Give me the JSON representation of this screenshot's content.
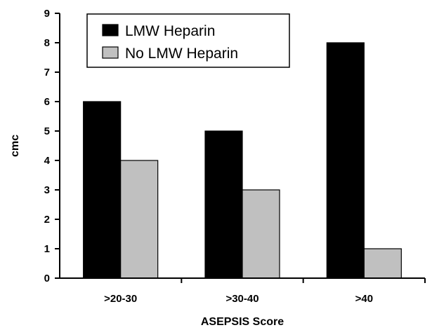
{
  "chart_data": {
    "type": "bar",
    "categories": [
      ">20-30",
      ">30-40",
      ">40"
    ],
    "series": [
      {
        "name": "LMW Heparin",
        "values": [
          6,
          5,
          8
        ],
        "color": "#000000"
      },
      {
        "name": "No LMW Heparin",
        "values": [
          4,
          3,
          1
        ],
        "color": "#c0c0c0"
      }
    ],
    "xlabel": "ASEPSIS Score",
    "ylabel": "cmc",
    "ylim": [
      0,
      9
    ],
    "yticks": [
      "0",
      "1",
      "2",
      "3",
      "4",
      "5",
      "6",
      "7",
      "8",
      "9"
    ],
    "grid": false,
    "legend_position": "top-left"
  }
}
